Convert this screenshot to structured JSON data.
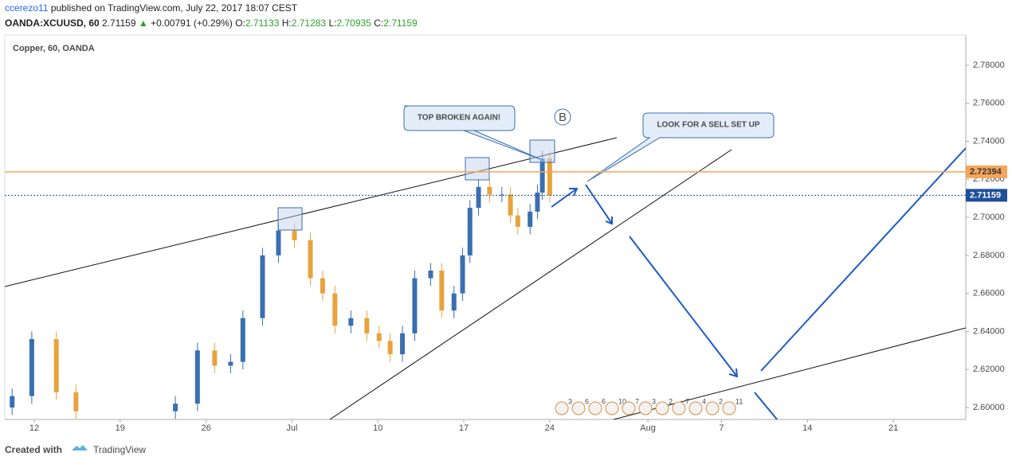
{
  "chart_data": {
    "type": "candlestick",
    "header": {
      "user": "ccerezo11",
      "published": "published on TradingView.com, July 22, 2017 18:07 CEST"
    },
    "symbol": {
      "name": "OANDA:XCUUSD, 60",
      "last": "2.71159",
      "change": "+0.00791 (+0.29%)",
      "o_label": "O:",
      "o": "2.71133",
      "h_label": "H:",
      "h": "2.71283",
      "l_label": "L:",
      "l": "2.70935",
      "c_label": "C:",
      "c": "2.71159"
    },
    "legend": "Copper, 60, OANDA",
    "x": [
      10.2,
      11.8,
      13.8,
      15.4,
      23.5,
      25.3,
      26.7,
      28.0,
      29.0,
      30.6,
      31.9,
      33.2,
      34.5,
      35.5,
      36.5,
      37.8,
      39.1,
      40.1,
      41.0,
      42.0,
      43.0,
      44.3,
      45.2,
      46.2,
      46.9,
      47.5,
      48.2,
      49.1,
      50.1,
      50.8,
      51.4,
      52.4,
      53.0,
      53.4,
      54.0
    ],
    "open": [
      2.6,
      2.606,
      2.636,
      2.608,
      2.598,
      2.602,
      2.63,
      2.622,
      2.624,
      2.647,
      2.68,
      2.693,
      2.688,
      2.668,
      2.66,
      2.643,
      2.647,
      2.639,
      2.635,
      2.628,
      2.639,
      2.668,
      2.672,
      2.651,
      2.66,
      2.68,
      2.705,
      2.716,
      2.712,
      2.712,
      2.701,
      2.695,
      2.703,
      2.713,
      2.731
    ],
    "high": [
      2.61,
      2.64,
      2.64,
      2.612,
      2.606,
      2.634,
      2.634,
      2.628,
      2.651,
      2.684,
      2.697,
      2.697,
      2.692,
      2.672,
      2.664,
      2.651,
      2.651,
      2.643,
      2.639,
      2.643,
      2.672,
      2.676,
      2.676,
      2.664,
      2.684,
      2.709,
      2.72,
      2.72,
      2.716,
      2.716,
      2.705,
      2.707,
      2.717,
      2.735,
      2.735
    ],
    "low": [
      2.596,
      2.602,
      2.604,
      2.594,
      2.594,
      2.598,
      2.618,
      2.618,
      2.62,
      2.643,
      2.676,
      2.684,
      2.664,
      2.656,
      2.639,
      2.639,
      2.635,
      2.631,
      2.624,
      2.624,
      2.635,
      2.664,
      2.647,
      2.647,
      2.656,
      2.676,
      2.701,
      2.708,
      2.708,
      2.697,
      2.691,
      2.691,
      2.699,
      2.709,
      2.708
    ],
    "close": [
      2.606,
      2.636,
      2.608,
      2.598,
      2.602,
      2.63,
      2.622,
      2.624,
      2.647,
      2.68,
      2.693,
      2.688,
      2.668,
      2.66,
      2.643,
      2.647,
      2.639,
      2.635,
      2.628,
      2.639,
      2.668,
      2.672,
      2.651,
      2.66,
      2.68,
      2.705,
      2.716,
      2.712,
      2.712,
      2.701,
      2.695,
      2.703,
      2.713,
      2.731,
      2.7116
    ],
    "up_color": "#3a6fb0",
    "down_color": "#e8a33d",
    "xlim": [
      9.6,
      87.9
    ],
    "xticks": [
      12,
      19,
      26,
      {
        "value": 33,
        "label": "Jul"
      },
      {
        "value": 40,
        "label": "10"
      },
      {
        "value": 47,
        "label": "17"
      },
      {
        "value": 54,
        "label": "24"
      },
      {
        "value": 62,
        "label": "Aug"
      },
      {
        "value": 68,
        "label": "7"
      },
      {
        "value": 75,
        "label": "14"
      },
      {
        "value": 82,
        "label": "21"
      }
    ],
    "ylim": [
      2.5937,
      2.7959
    ],
    "yticks": [
      {
        "value": 2.6,
        "label": "2.60000"
      },
      {
        "value": 2.62,
        "label": "2.62000"
      },
      {
        "value": 2.64,
        "label": "2.64000"
      },
      {
        "value": 2.66,
        "label": "2.66000"
      },
      {
        "value": 2.68,
        "label": "2.68000"
      },
      {
        "value": 2.7,
        "label": "2.70000"
      },
      {
        "value": 2.72,
        "label": "2.72000"
      },
      {
        "value": 2.74,
        "label": "2.74000"
      },
      {
        "value": 2.76,
        "label": "2.76000"
      },
      {
        "value": 2.78,
        "label": "2.78000"
      }
    ],
    "hlines": [
      {
        "value": 2.72394,
        "label": "2.72394",
        "color": "#f5a55a"
      },
      {
        "value": 2.71159,
        "label": "2.71159",
        "color": "#1e4f99"
      }
    ],
    "annotations": [
      "TOP BROKEN AGAIN!",
      "LOOK FOR A SELL SET UP",
      "B"
    ],
    "events": [
      "3",
      "6",
      "6",
      "10",
      "7",
      "3",
      "2",
      "7",
      "4",
      "2",
      "11"
    ],
    "footer": {
      "created": "Created with",
      "brand": "TradingView"
    }
  }
}
